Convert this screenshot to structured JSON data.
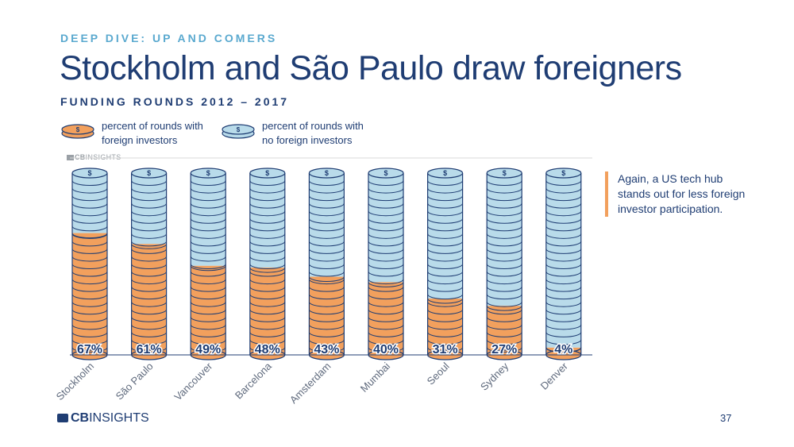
{
  "kicker": "DEEP DIVE: UP AND COMERS",
  "title": "Stockholm and São Paulo draw foreigners",
  "subtitle": "FUNDING ROUNDS 2012 – 2017",
  "legend": [
    {
      "label_line1": "percent of rounds with",
      "label_line2": "foreign investors",
      "color": "#f2a05d"
    },
    {
      "label_line1": "percent of rounds with",
      "label_line2": "no foreign investors",
      "color": "#b9dbea"
    }
  ],
  "source_mark": {
    "bold": "CB",
    "rest": "INSIGHTS"
  },
  "note": "Again, a US tech hub stands out for less foreign investor participation.",
  "footer": {
    "bold": "CB",
    "rest": "INSIGHTS"
  },
  "page_number": "37",
  "colors": {
    "foreign": "#f2a05d",
    "no_foreign": "#b9dbea",
    "outline": "#1f3d73",
    "accent": "#5aa9cf"
  },
  "chart_data": {
    "type": "bar",
    "style": "stacked coin columns",
    "categories": [
      "Stockholm",
      "São Paulo",
      "Vancouver",
      "Barcelona",
      "Amsterdam",
      "Mumbai",
      "Seoul",
      "Sydney",
      "Denver"
    ],
    "series": [
      {
        "name": "percent of rounds with foreign investors",
        "values": [
          67,
          61,
          49,
          48,
          43,
          40,
          31,
          27,
          4
        ]
      },
      {
        "name": "percent of rounds with no foreign investors",
        "values": [
          33,
          39,
          51,
          52,
          57,
          60,
          69,
          73,
          96
        ]
      }
    ],
    "data_labels": [
      "67%",
      "61%",
      "49%",
      "48%",
      "43%",
      "40%",
      "31%",
      "27%",
      "4%"
    ],
    "ylim": [
      0,
      100
    ],
    "coin_symbol": "$",
    "xlabel": "",
    "ylabel": ""
  }
}
